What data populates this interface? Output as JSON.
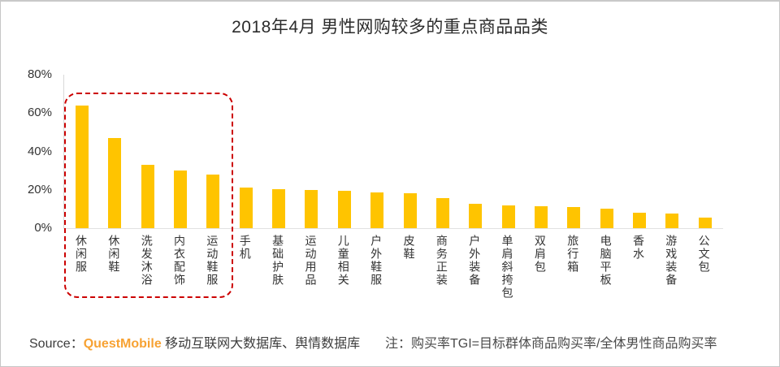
{
  "title": "2018年4月 男性网购较多的重点商品品类",
  "chart_data": {
    "type": "bar",
    "title": "2018年4月 男性网购较多的重点商品品类",
    "categories": [
      "休闲服",
      "休闲鞋",
      "洗发沐浴",
      "内衣配饰",
      "运动鞋服",
      "手机",
      "基础护肤",
      "运动用品",
      "儿童相关",
      "户外鞋服",
      "皮鞋",
      "商务正装",
      "户外装备",
      "单肩斜挎包",
      "双肩包",
      "旅行箱",
      "电脑平板",
      "香水",
      "游戏装备",
      "公文包"
    ],
    "values": [
      64,
      47,
      33,
      30,
      28,
      21,
      20.5,
      20,
      19.5,
      18.5,
      18,
      15.5,
      12.5,
      12,
      11.5,
      11,
      10,
      8,
      7.5,
      5.5
    ],
    "xlabel": "",
    "ylabel": "",
    "ylim": [
      0,
      80
    ],
    "y_tick_values": [
      0,
      20,
      40,
      60,
      80
    ],
    "y_tick_labels": [
      "0%",
      "20%",
      "40%",
      "60%",
      "80%"
    ],
    "grid": false,
    "legend": false,
    "bar_color": "#FFC400",
    "highlight": {
      "style": "dashed-rounded-rect",
      "color": "#CC0000",
      "categories": [
        "休闲服",
        "休闲鞋",
        "洗发沐浴",
        "内衣配饰",
        "运动鞋服"
      ]
    }
  },
  "footer": {
    "source_label": "Source：",
    "source_brand": "QuestMobile",
    "source_rest": " 移动互联网大数据库、舆情数据库",
    "brand_color": "#F7A233",
    "note": "注：购买率TGI=目标群体商品购买率/全体男性商品购买率"
  }
}
